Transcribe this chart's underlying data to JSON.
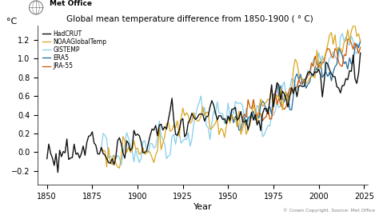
{
  "title": "Global mean temperature difference from 1850-1900 ( ° C)",
  "subtitle": "Met Office",
  "xlabel": "Year",
  "ylabel": "°C",
  "copyright": "© Crown Copyright. Source: Met Office",
  "xlim": [
    1845,
    2027
  ],
  "ylim": [
    -0.35,
    1.35
  ],
  "yticks": [
    -0.2,
    0.0,
    0.2,
    0.4,
    0.6,
    0.8,
    1.0,
    1.2
  ],
  "xticks": [
    1850,
    1875,
    1900,
    1925,
    1950,
    1975,
    2000,
    2025
  ],
  "series": {
    "HadCRUT": {
      "color": "#111111",
      "lw": 1.0,
      "zorder": 5,
      "seed": 1
    },
    "NOAAGlobalTemp": {
      "color": "#DAA520",
      "lw": 0.9,
      "zorder": 4,
      "seed": 2
    },
    "GISTEMP": {
      "color": "#87CEEB",
      "lw": 0.9,
      "zorder": 3,
      "seed": 3
    },
    "ERA5": {
      "color": "#1E6B9E",
      "lw": 0.9,
      "zorder": 3,
      "seed": 4
    },
    "JRA-55": {
      "color": "#CC5500",
      "lw": 0.9,
      "zorder": 3,
      "seed": 5
    }
  },
  "background_color": "#ffffff"
}
